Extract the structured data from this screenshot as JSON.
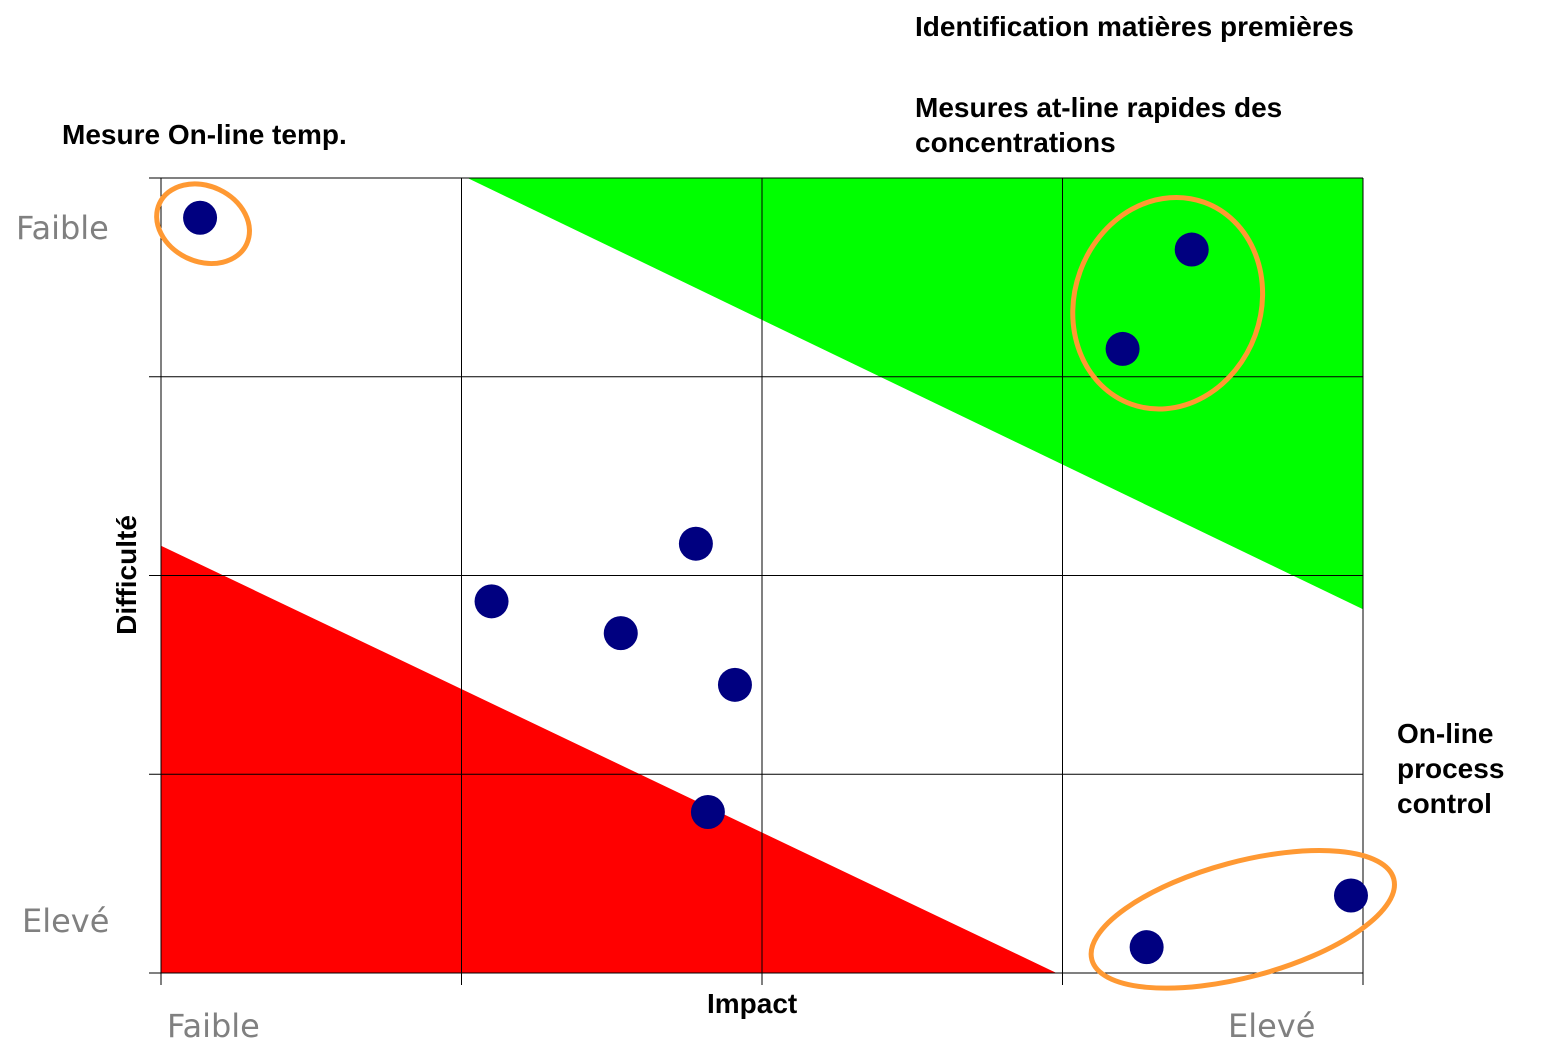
{
  "chart_data": {
    "type": "scatter",
    "title": "",
    "xlabel": "Impact",
    "ylabel": "Difficulté",
    "xlim": [
      0,
      4
    ],
    "ylim": [
      0,
      4
    ],
    "x_tick_labels": {
      "low": "Faible",
      "high": "Elevé"
    },
    "y_tick_labels": {
      "top": "Faible",
      "bottom": "Elevé"
    },
    "grid": true,
    "point_color": "#000080",
    "points": [
      {
        "x": 0.13,
        "y": 3.8
      },
      {
        "x": 1.1,
        "y": 1.87
      },
      {
        "x": 1.53,
        "y": 1.71
      },
      {
        "x": 1.78,
        "y": 2.16
      },
      {
        "x": 1.91,
        "y": 1.45
      },
      {
        "x": 1.82,
        "y": 0.81
      },
      {
        "x": 3.2,
        "y": 3.14
      },
      {
        "x": 3.43,
        "y": 3.64
      },
      {
        "x": 3.28,
        "y": 0.13
      },
      {
        "x": 3.96,
        "y": 0.39
      }
    ],
    "regions": [
      {
        "color": "#00ff00",
        "polygon": [
          [
            1.02,
            4.0
          ],
          [
            4.0,
            4.0
          ],
          [
            4.0,
            1.83
          ]
        ]
      },
      {
        "color": "#ff0000",
        "polygon": [
          [
            0.0,
            0.0
          ],
          [
            0.0,
            2.15
          ],
          [
            2.98,
            0.0
          ]
        ]
      }
    ],
    "highlights": [
      {
        "cx": 0.14,
        "cy": 3.77,
        "rx": 0.16,
        "ry": 0.19,
        "angle": 25
      },
      {
        "cx": 3.35,
        "cy": 3.37,
        "rx": 0.31,
        "ry": 0.54,
        "angle": 20
      },
      {
        "cx": 3.6,
        "cy": 0.27,
        "rx": 0.52,
        "ry": 0.29,
        "angle": -15
      }
    ],
    "highlight_color": "#ff9933",
    "annotations": [
      {
        "id": "on-line-temp",
        "text": "Mesure On-line temp."
      },
      {
        "id": "identification",
        "text": "Identification matières premières"
      },
      {
        "id": "at-line",
        "text": "Mesures at-line rapides des concentrations"
      },
      {
        "id": "process-control",
        "text": "On-line process control"
      }
    ]
  }
}
